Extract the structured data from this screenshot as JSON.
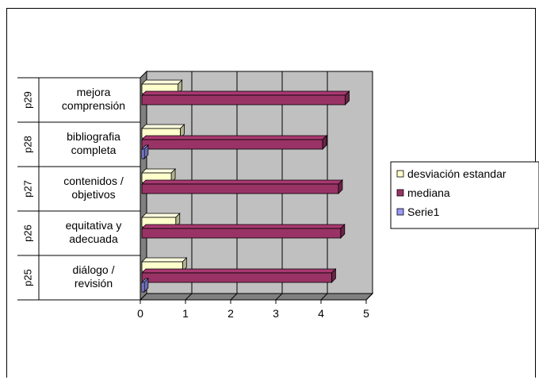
{
  "chart_data": {
    "type": "bar",
    "orientation": "horizontal",
    "three_d": true,
    "groups": [
      {
        "code": "p25",
        "label_lines": [
          "diálogo /",
          "revisión"
        ]
      },
      {
        "code": "p26",
        "label_lines": [
          "equitativa y",
          "adecuada"
        ]
      },
      {
        "code": "p27",
        "label_lines": [
          "contenidos /",
          "objetivos"
        ]
      },
      {
        "code": "p28",
        "label_lines": [
          "bibliografia",
          "completa"
        ]
      },
      {
        "code": "p29",
        "label_lines": [
          "mejora",
          "comprensión"
        ]
      }
    ],
    "series": [
      {
        "name": "desviación estandar",
        "color": "#ffffcc",
        "values": [
          0.9,
          0.75,
          0.65,
          0.85,
          0.8
        ]
      },
      {
        "name": "mediana",
        "color": "#993366",
        "values": [
          4.2,
          4.4,
          4.35,
          4.0,
          4.5
        ]
      },
      {
        "name": "Serie1",
        "color": "#9999ff",
        "values": [
          0.05,
          0,
          0,
          0.05,
          0
        ]
      }
    ],
    "xlim": [
      0,
      5
    ],
    "xticks": [
      "0",
      "1",
      "2",
      "3",
      "4",
      "5"
    ],
    "grid": true,
    "legend_position": "right",
    "wall_color": "#c0c0c0",
    "floor_color": "#808080"
  }
}
